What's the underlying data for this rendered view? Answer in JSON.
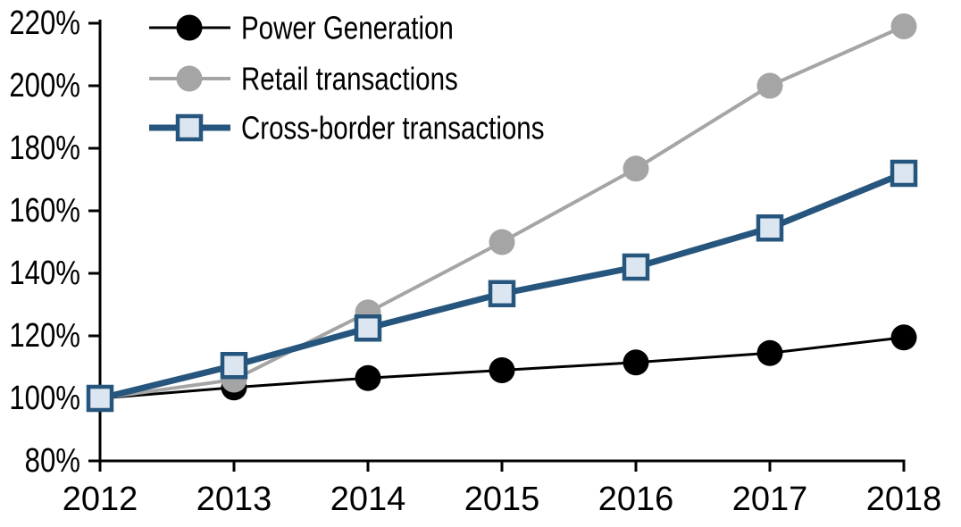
{
  "chart_data": {
    "type": "line",
    "title": "",
    "xlabel": "",
    "ylabel": "",
    "categories": [
      "2012",
      "2013",
      "2014",
      "2015",
      "2016",
      "2017",
      "2018"
    ],
    "series": [
      {
        "name": "Power Generation",
        "values": [
          100,
          103.5,
          106.5,
          109,
          111.5,
          114.5,
          119.5
        ],
        "color": "#000000",
        "marker": "circle",
        "marker_fill": "#000000",
        "line_width": 3
      },
      {
        "name": "Retail transactions",
        "values": [
          100,
          106,
          127.5,
          150,
          173.5,
          200,
          219
        ],
        "color": "#a5a5a5",
        "marker": "circle",
        "marker_fill": "#a5a5a5",
        "line_width": 4
      },
      {
        "name": "Cross-border transactions",
        "values": [
          100,
          110.5,
          122.5,
          133.5,
          142,
          154.5,
          172
        ],
        "color": "#26557d",
        "marker": "square",
        "marker_fill": "#dce6f1",
        "line_width": 7
      }
    ],
    "ylim": [
      80,
      220
    ],
    "ytick_step": 20,
    "y_tick_labels": [
      "220%",
      "200%",
      "180%",
      "160%",
      "140%",
      "120%",
      "100%",
      "80%"
    ],
    "x_tick_labels": [
      "2012",
      "2013",
      "2014",
      "2015",
      "2016",
      "2017",
      "2018"
    ],
    "legend_position": "top-left",
    "grid": false,
    "background_color": "#ffffff",
    "axis_color": "#000000"
  }
}
